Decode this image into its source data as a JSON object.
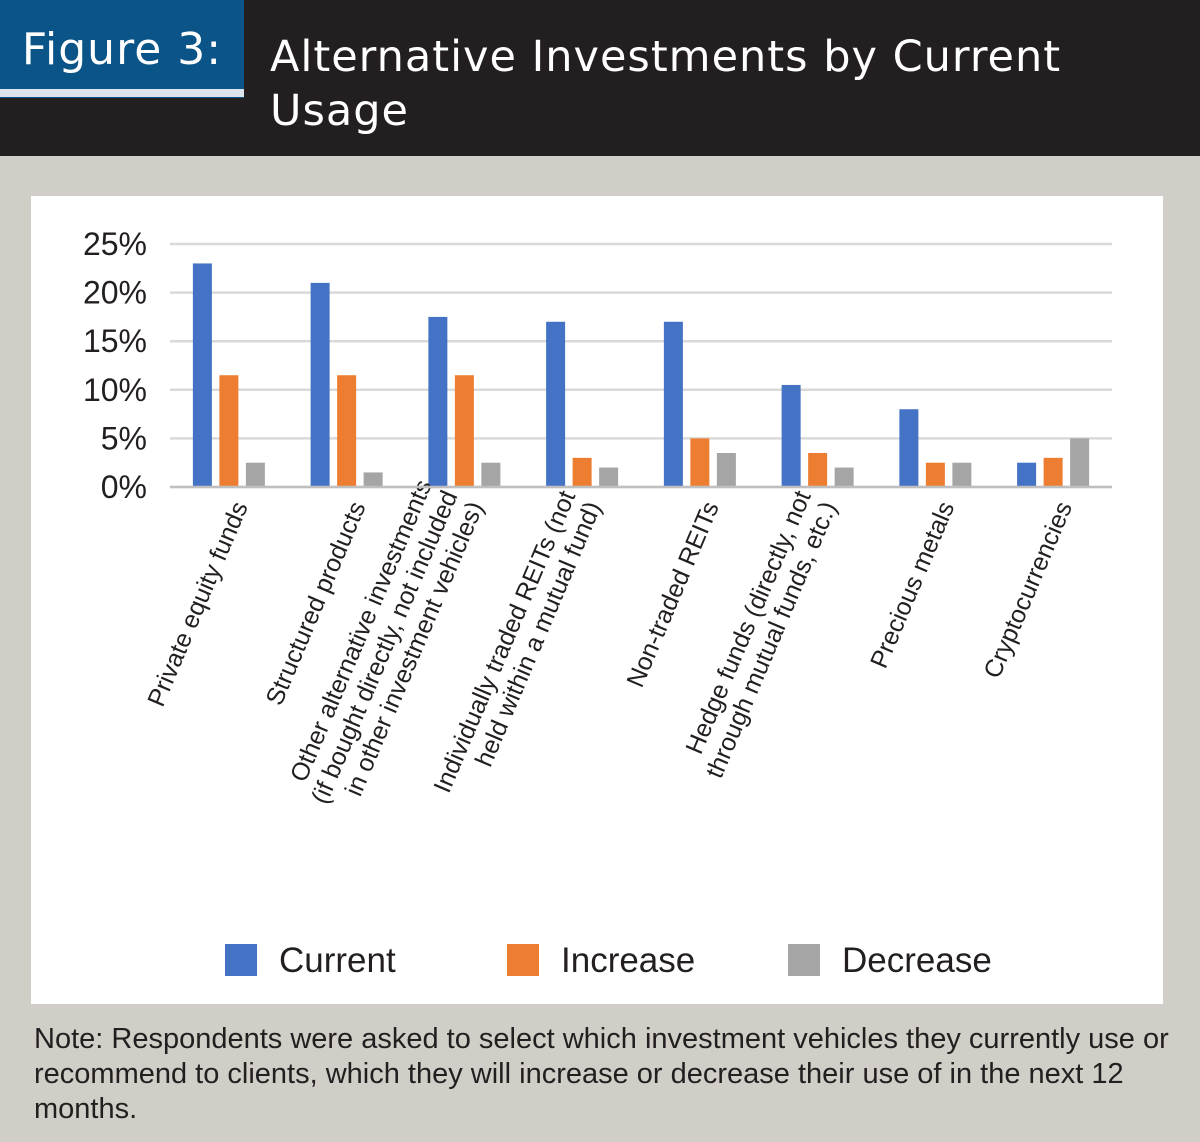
{
  "header": {
    "figure_label": "Figure 3:",
    "title": "Alternative Investments by Current Usage"
  },
  "note": "Note: Respondents were asked to select which investment vehicles they currently use or recommend to clients, which they will increase or decrease their use of in the next 12 months.",
  "colors": {
    "header_bg": "#231f20",
    "figure_box": "#0b5487",
    "current": "#4472c4",
    "increase": "#ed7d31",
    "decrease": "#a5a5a5"
  },
  "chart_data": {
    "type": "bar",
    "categories": [
      [
        "Private equity funds"
      ],
      [
        "Structured products"
      ],
      [
        "Other alternative investments",
        "(if bought directly, not included",
        "in other investment vehicles)"
      ],
      [
        "Individually traded REITs (not",
        "held within a mutual fund)"
      ],
      [
        "Non-traded REITs"
      ],
      [
        "Hedge funds (directly, not",
        "through mutual funds, etc.)"
      ],
      [
        "Precious metals"
      ],
      [
        "Cryptocurrencies"
      ]
    ],
    "series": [
      {
        "name": "Current",
        "values": [
          23,
          21,
          17.5,
          17,
          17,
          10.5,
          8,
          2.5
        ]
      },
      {
        "name": "Increase",
        "values": [
          11.5,
          11.5,
          11.5,
          3,
          5,
          3.5,
          2.5,
          3
        ]
      },
      {
        "name": "Decrease",
        "values": [
          2.5,
          1.5,
          2.5,
          2,
          3.5,
          2,
          2.5,
          5
        ]
      }
    ],
    "ylim": [
      0,
      25
    ],
    "yticks": [
      "0%",
      "5%",
      "10%",
      "15%",
      "20%",
      "25%"
    ],
    "grid": true,
    "legend": "bottom"
  }
}
